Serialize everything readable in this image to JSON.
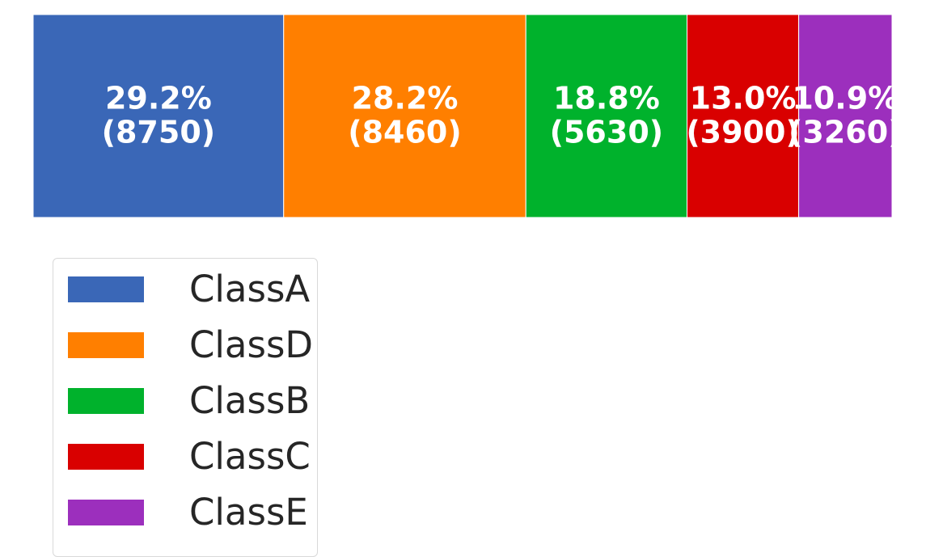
{
  "chart_data": {
    "type": "bar",
    "orientation": "horizontal-stacked-100",
    "categories": [
      "ClassA",
      "ClassD",
      "ClassB",
      "ClassC",
      "ClassE"
    ],
    "values": [
      8750,
      8460,
      5630,
      3900,
      3260
    ],
    "percent_labels": [
      "29.2%",
      "28.2%",
      "18.8%",
      "13.0%",
      "10.9%"
    ],
    "count_labels": [
      "(8750)",
      "(8460)",
      "(5630)",
      "(3900)",
      "(3260)"
    ],
    "colors": [
      "#3a67b7",
      "#ff7f00",
      "#00b22c",
      "#d90000",
      "#9c2fbd"
    ],
    "legend": {
      "placement": "bottom-left",
      "entries": [
        "ClassA",
        "ClassD",
        "ClassB",
        "ClassC",
        "ClassE"
      ]
    },
    "grid": false
  }
}
